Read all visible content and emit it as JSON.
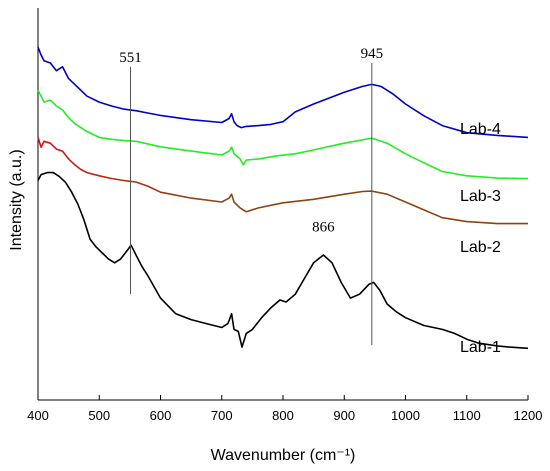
{
  "chart_data": {
    "type": "line",
    "title": "",
    "xlabel": "Wavenumber (cm⁻¹)",
    "ylabel": "Intensity (a.u.)",
    "xlim": [
      400,
      1200
    ],
    "ylim": [
      0,
      100
    ],
    "x_ticks": [
      "400",
      "500",
      "600",
      "700",
      "800",
      "900",
      "1000",
      "1100",
      "1200"
    ],
    "grid": false,
    "series": [
      {
        "name": "Lab-4",
        "color": "#0000cc",
        "points": [
          [
            400,
            90
          ],
          [
            405,
            88
          ],
          [
            410,
            86.5
          ],
          [
            420,
            86
          ],
          [
            430,
            84
          ],
          [
            440,
            85
          ],
          [
            450,
            82
          ],
          [
            460,
            80.5
          ],
          [
            470,
            79
          ],
          [
            480,
            77.5
          ],
          [
            500,
            76
          ],
          [
            520,
            75
          ],
          [
            540,
            74.2
          ],
          [
            560,
            73.8
          ],
          [
            580,
            73.2
          ],
          [
            600,
            72.6
          ],
          [
            650,
            71.5
          ],
          [
            700,
            70.8
          ],
          [
            712,
            71.8
          ],
          [
            716,
            73
          ],
          [
            720,
            71
          ],
          [
            725,
            70
          ],
          [
            732,
            69.5
          ],
          [
            740,
            69.8
          ],
          [
            760,
            70
          ],
          [
            780,
            70.3
          ],
          [
            800,
            71
          ],
          [
            820,
            73.5
          ],
          [
            850,
            75.5
          ],
          [
            900,
            78.5
          ],
          [
            930,
            80
          ],
          [
            945,
            80.5
          ],
          [
            960,
            80
          ],
          [
            980,
            78
          ],
          [
            1000,
            75.5
          ],
          [
            1030,
            72.5
          ],
          [
            1060,
            70
          ],
          [
            1100,
            68.2
          ],
          [
            1150,
            67.5
          ],
          [
            1200,
            67
          ]
        ]
      },
      {
        "name": "Lab-3",
        "color": "#22ee22",
        "points": [
          [
            400,
            79
          ],
          [
            410,
            76
          ],
          [
            420,
            76.5
          ],
          [
            430,
            75
          ],
          [
            440,
            74
          ],
          [
            450,
            72
          ],
          [
            460,
            70.5
          ],
          [
            470,
            69.5
          ],
          [
            480,
            68.5
          ],
          [
            500,
            67
          ],
          [
            520,
            66.5
          ],
          [
            540,
            66.2
          ],
          [
            560,
            66
          ],
          [
            600,
            64.6
          ],
          [
            650,
            63.5
          ],
          [
            700,
            62.5
          ],
          [
            712,
            63.5
          ],
          [
            716,
            64.5
          ],
          [
            720,
            62.8
          ],
          [
            730,
            61.5
          ],
          [
            735,
            60
          ],
          [
            740,
            61.2
          ],
          [
            760,
            61.5
          ],
          [
            790,
            62.3
          ],
          [
            820,
            62.8
          ],
          [
            850,
            63.8
          ],
          [
            900,
            65.5
          ],
          [
            945,
            66.8
          ],
          [
            970,
            65.5
          ],
          [
            1000,
            62.8
          ],
          [
            1030,
            60.5
          ],
          [
            1060,
            58.3
          ],
          [
            1100,
            57.2
          ],
          [
            1150,
            56.6
          ],
          [
            1200,
            56.5
          ]
        ]
      },
      {
        "name": "Lab-2",
        "color": "#dd1111",
        "color_end": "#8b4513",
        "points": [
          [
            400,
            67
          ],
          [
            405,
            64.5
          ],
          [
            410,
            66
          ],
          [
            420,
            65.5
          ],
          [
            430,
            64
          ],
          [
            440,
            63.5
          ],
          [
            450,
            61.5
          ],
          [
            460,
            60
          ],
          [
            470,
            58.8
          ],
          [
            480,
            58
          ],
          [
            500,
            57.2
          ],
          [
            520,
            56.5
          ],
          [
            540,
            56
          ],
          [
            560,
            55.6
          ],
          [
            580,
            54.5
          ],
          [
            600,
            53
          ],
          [
            650,
            51.5
          ],
          [
            700,
            50.5
          ],
          [
            712,
            51.5
          ],
          [
            716,
            52.5
          ],
          [
            720,
            50.5
          ],
          [
            730,
            49
          ],
          [
            740,
            48
          ],
          [
            760,
            49
          ],
          [
            800,
            50.3
          ],
          [
            850,
            51.2
          ],
          [
            900,
            52.5
          ],
          [
            930,
            53.2
          ],
          [
            945,
            53.3
          ],
          [
            970,
            52.5
          ],
          [
            1000,
            50.5
          ],
          [
            1030,
            48.5
          ],
          [
            1060,
            46.5
          ],
          [
            1100,
            45.5
          ],
          [
            1150,
            45
          ],
          [
            1200,
            45
          ]
        ]
      },
      {
        "name": "Lab-1",
        "color": "#000000",
        "points": [
          [
            400,
            56
          ],
          [
            405,
            57.5
          ],
          [
            415,
            58
          ],
          [
            425,
            58
          ],
          [
            435,
            57
          ],
          [
            445,
            55.5
          ],
          [
            455,
            53
          ],
          [
            465,
            50
          ],
          [
            475,
            46
          ],
          [
            485,
            41
          ],
          [
            495,
            39
          ],
          [
            505,
            37.5
          ],
          [
            515,
            36
          ],
          [
            525,
            35
          ],
          [
            535,
            36
          ],
          [
            545,
            38
          ],
          [
            552,
            39.5
          ],
          [
            560,
            37
          ],
          [
            570,
            34
          ],
          [
            580,
            31.5
          ],
          [
            600,
            26
          ],
          [
            625,
            22
          ],
          [
            650,
            20.5
          ],
          [
            675,
            19.5
          ],
          [
            700,
            18.5
          ],
          [
            710,
            19.5
          ],
          [
            716,
            22
          ],
          [
            720,
            18
          ],
          [
            727,
            17.5
          ],
          [
            733,
            13.5
          ],
          [
            740,
            17
          ],
          [
            750,
            18
          ],
          [
            765,
            21
          ],
          [
            780,
            23.5
          ],
          [
            795,
            25.5
          ],
          [
            805,
            25
          ],
          [
            820,
            27
          ],
          [
            835,
            31
          ],
          [
            850,
            35
          ],
          [
            866,
            37
          ],
          [
            880,
            35
          ],
          [
            895,
            30
          ],
          [
            910,
            26
          ],
          [
            925,
            27
          ],
          [
            940,
            29.5
          ],
          [
            948,
            30
          ],
          [
            958,
            28
          ],
          [
            970,
            24.5
          ],
          [
            985,
            22.5
          ],
          [
            1000,
            21
          ],
          [
            1030,
            19
          ],
          [
            1060,
            18
          ],
          [
            1080,
            17
          ],
          [
            1100,
            15.5
          ],
          [
            1120,
            14.5
          ],
          [
            1150,
            13.8
          ],
          [
            1170,
            13.5
          ],
          [
            1200,
            13.2
          ]
        ]
      }
    ],
    "reference_lines": [
      {
        "x": 551,
        "label": "551",
        "y_from": 27,
        "y_to": 85
      },
      {
        "x": 945,
        "label": "945",
        "y_from": 14,
        "y_to": 86
      }
    ],
    "annotations": [
      {
        "text": "866",
        "x": 866,
        "y": 43
      }
    ]
  }
}
